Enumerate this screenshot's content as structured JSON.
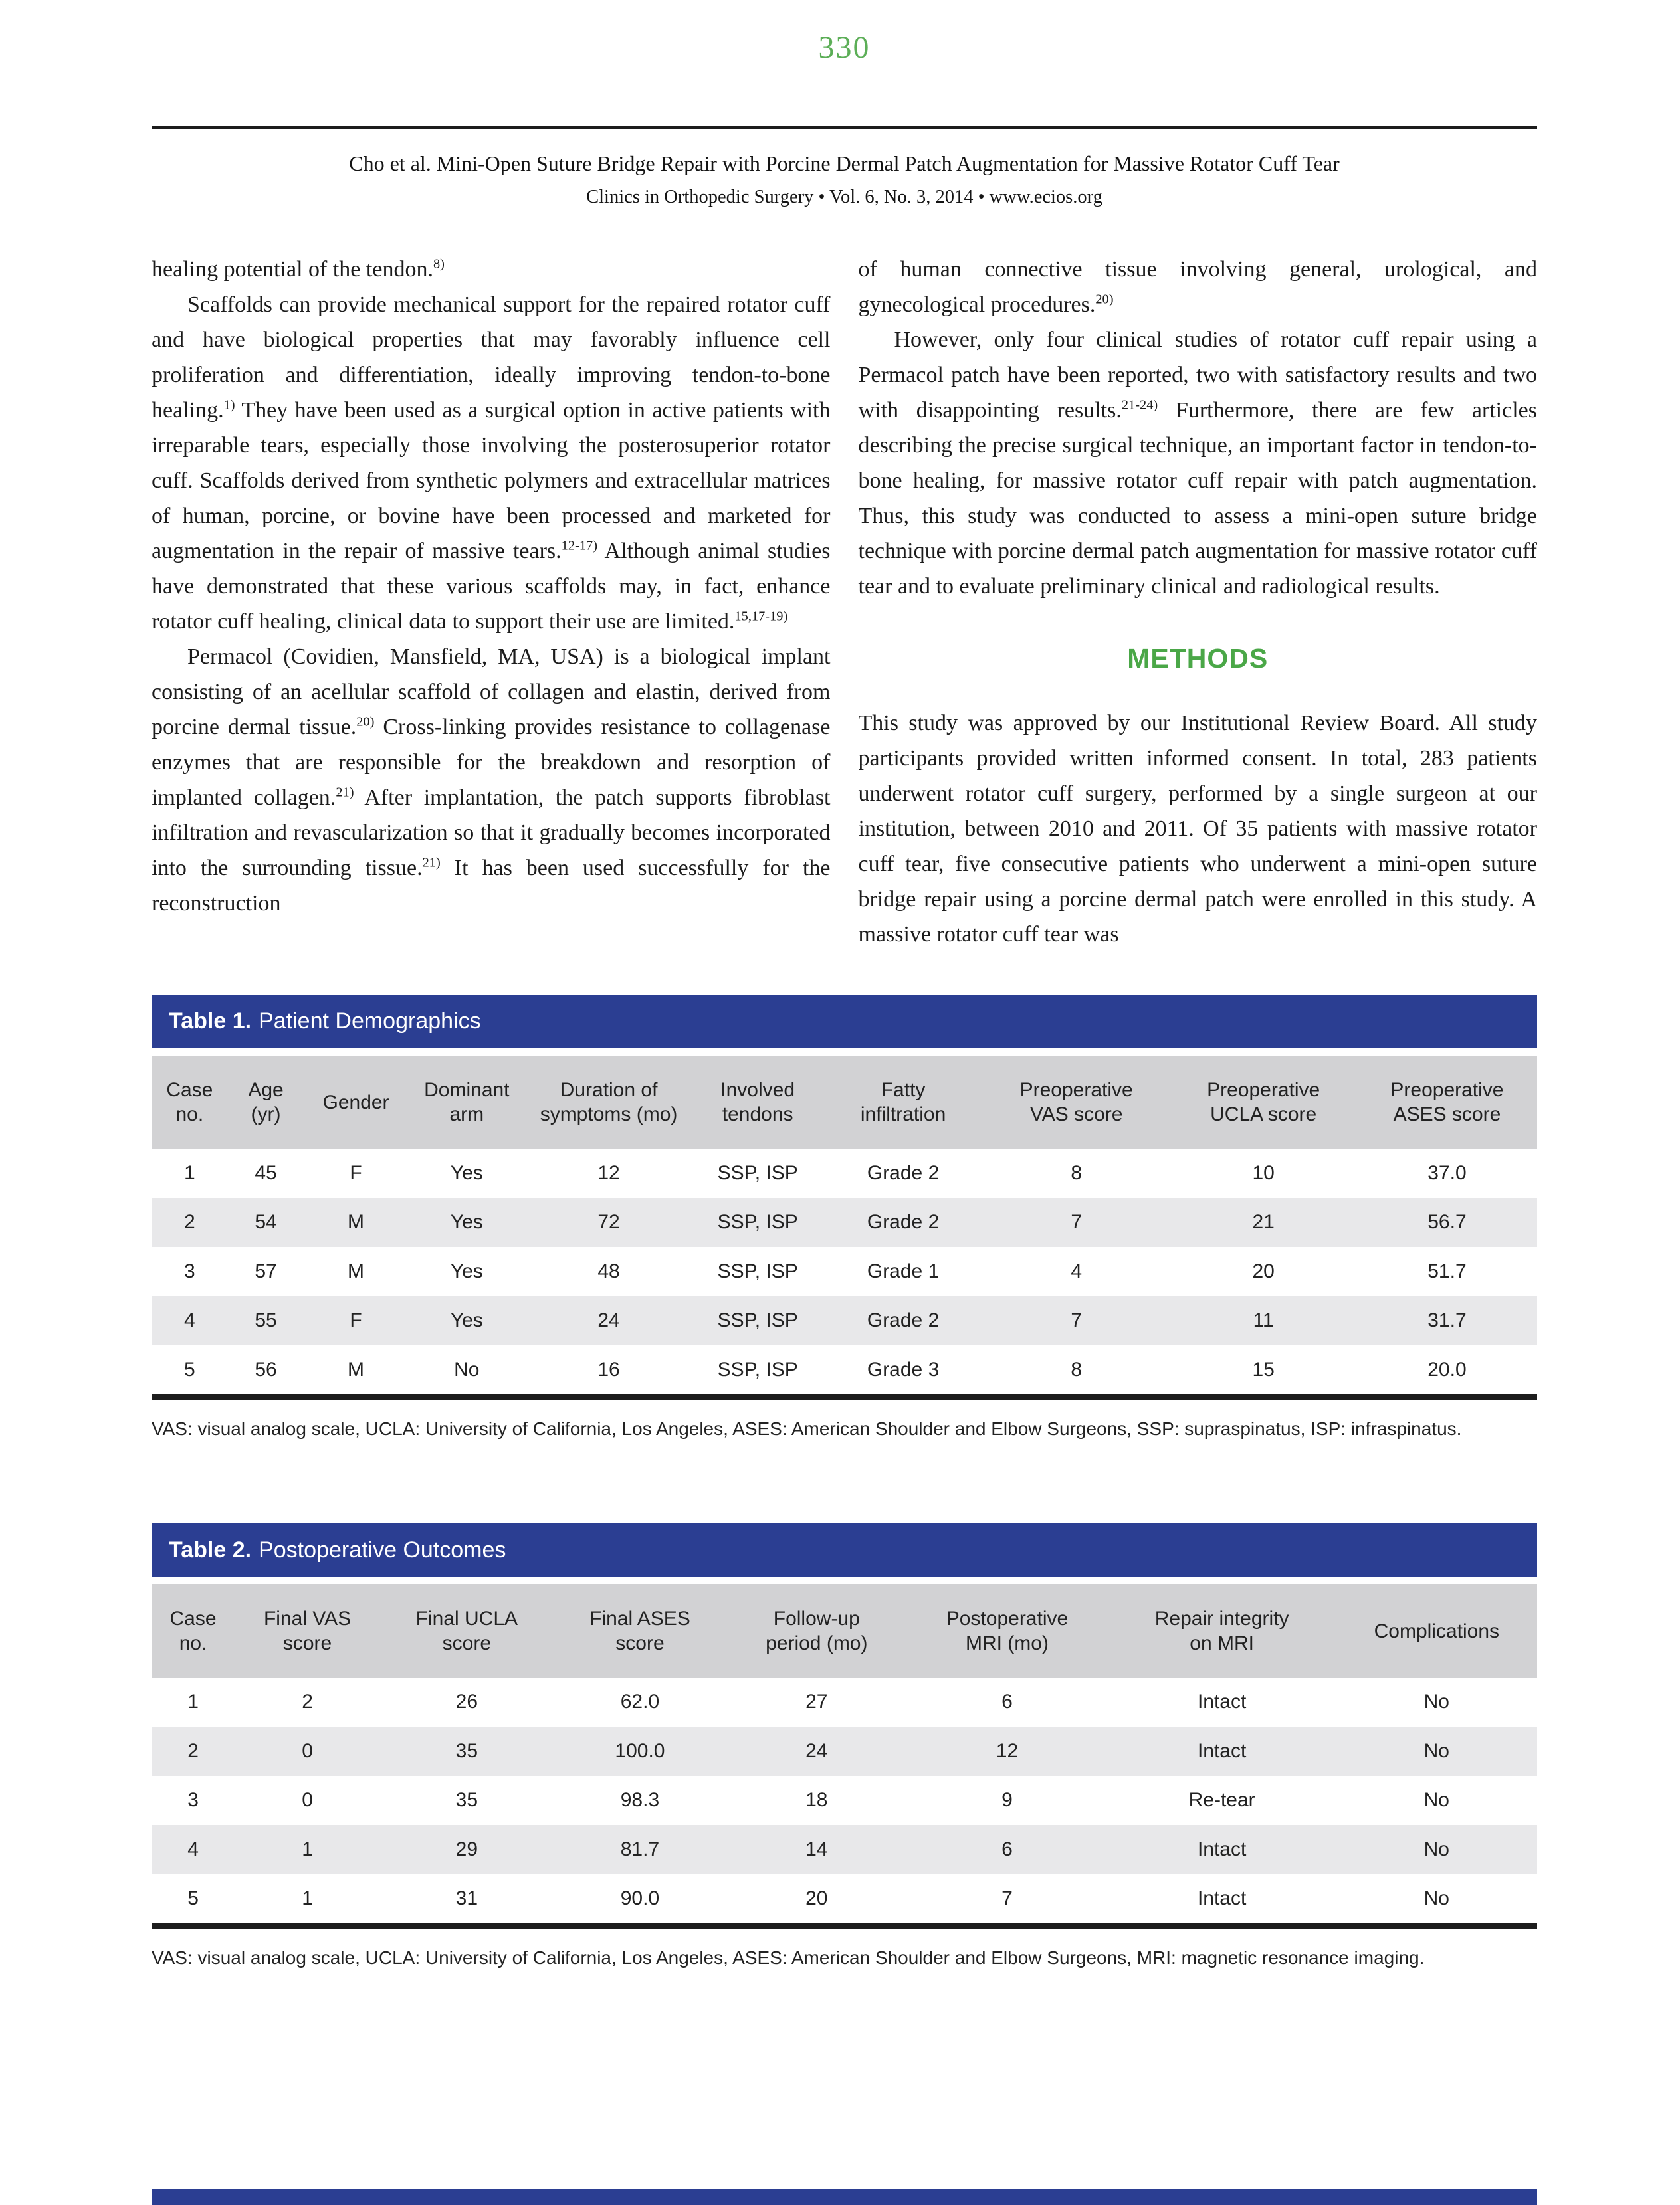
{
  "page": {
    "number": "330"
  },
  "colors": {
    "accent_green": "#4aa747",
    "page_number_green": "#5cae57",
    "table_bar_blue": "#2b3e92",
    "column_header_gray": "#d2d2d4",
    "row_shade_gray": "#e8e8ea",
    "rule_dark": "#1c1c1c"
  },
  "header": {
    "running_title": "Cho et al. Mini-Open Suture Bridge Repair with Porcine Dermal Patch Augmentation for Massive Rotator Cuff Tear",
    "journal_line": "Clinics in Orthopedic Surgery • Vol. 6, No. 3, 2014 • www.ecios.org"
  },
  "left_column": [
    {
      "indent": false,
      "text": "healing potential of the tendon.8)"
    },
    {
      "indent": true,
      "text": "Scaffolds can provide mechanical support for the repaired rotator cuff and have biological properties that may favorably influence cell proliferation and differentiation, ideally improving tendon-to-bone healing.1) They have been used as a surgical option in active patients with irreparable tears, especially those involving the posterosuperior rotator cuff. Scaffolds derived from synthetic polymers and extracellular matrices of human, porcine, or bovine have been processed and marketed for augmentation in the repair of massive tears.12-17) Although animal studies have demonstrated that these various scaffolds may, in fact, enhance rotator cuff healing, clinical data to support their use are limited.15,17-19)"
    },
    {
      "indent": true,
      "text": "Permacol (Covidien, Mansfield, MA, USA) is a biological implant consisting of an acellular scaffold of collagen and elastin, derived from porcine dermal tissue.20) Cross-linking provides resistance to collagenase enzymes that are responsible for the breakdown and resorption of implanted collagen.21) After implantation, the patch supports fibroblast infiltration and revascularization so that it gradually becomes incorporated into the surrounding tissue.21) It has been used successfully for the reconstruction"
    }
  ],
  "right_column": [
    {
      "indent": false,
      "text": "of human connective tissue involving general, urological, and gynecological procedures.20)"
    },
    {
      "indent": true,
      "text": "However, only four clinical studies of rotator cuff repair using a Permacol patch have been reported, two with satisfactory results and two with disappointing results.21-24) Furthermore, there are few articles describing the precise surgical technique, an important factor in tendon-to-bone healing, for massive rotator cuff repair with patch augmentation. Thus, this study was conducted to assess a mini-open suture bridge technique with porcine dermal patch augmentation for massive rotator cuff tear and to evaluate preliminary clinical and radiological results."
    },
    {
      "heading": "METHODS"
    },
    {
      "indent": false,
      "text": "This study was approved by our Institutional Review Board. All study participants provided written informed consent. In total, 283 patients underwent rotator cuff surgery, performed by a single surgeon at our institution, between 2010 and 2011. Of 35 patients with massive rotator cuff tear, five consecutive patients who underwent a mini-open suture bridge repair using a porcine dermal patch were enrolled in this study. A massive rotator cuff tear was"
    }
  ],
  "table1": {
    "label": "Table 1.",
    "title": "Patient Demographics",
    "columns": [
      "Case\nno.",
      "Age\n(yr)",
      "Gender",
      "Dominant\narm",
      "Duration of\nsymptoms (mo)",
      "Involved\ntendons",
      "Fatty\ninfiltration",
      "Preoperative\nVAS score",
      "Preoperative\nUCLA score",
      "Preoperative\nASES score"
    ],
    "rows": [
      [
        "1",
        "45",
        "F",
        "Yes",
        "12",
        "SSP, ISP",
        "Grade 2",
        "8",
        "10",
        "37.0"
      ],
      [
        "2",
        "54",
        "M",
        "Yes",
        "72",
        "SSP, ISP",
        "Grade 2",
        "7",
        "21",
        "56.7"
      ],
      [
        "3",
        "57",
        "M",
        "Yes",
        "48",
        "SSP, ISP",
        "Grade 1",
        "4",
        "20",
        "51.7"
      ],
      [
        "4",
        "55",
        "F",
        "Yes",
        "24",
        "SSP, ISP",
        "Grade 2",
        "7",
        "11",
        "31.7"
      ],
      [
        "5",
        "56",
        "M",
        "No",
        "16",
        "SSP, ISP",
        "Grade 3",
        "8",
        "15",
        "20.0"
      ]
    ],
    "footnote": "VAS: visual analog scale, UCLA: University of California, Los Angeles, ASES: American Shoulder and Elbow Surgeons, SSP: supraspinatus, ISP: infraspinatus."
  },
  "table2": {
    "label": "Table 2.",
    "title": "Postoperative Outcomes",
    "columns": [
      "Case\nno.",
      "Final VAS\nscore",
      "Final UCLA\nscore",
      "Final ASES\nscore",
      "Follow-up\nperiod (mo)",
      "Postoperative\nMRI (mo)",
      "Repair integrity\non MRI",
      "Complications"
    ],
    "rows": [
      [
        "1",
        "2",
        "26",
        "62.0",
        "27",
        "6",
        "Intact",
        "No"
      ],
      [
        "2",
        "0",
        "35",
        "100.0",
        "24",
        "12",
        "Intact",
        "No"
      ],
      [
        "3",
        "0",
        "35",
        "98.3",
        "18",
        "9",
        "Re-tear",
        "No"
      ],
      [
        "4",
        "1",
        "29",
        "81.7",
        "14",
        "6",
        "Intact",
        "No"
      ],
      [
        "5",
        "1",
        "31",
        "90.0",
        "20",
        "7",
        "Intact",
        "No"
      ]
    ],
    "footnote": "VAS: visual analog scale, UCLA: University of California, Los Angeles, ASES: American Shoulder and Elbow Surgeons, MRI: magnetic resonance imaging."
  }
}
